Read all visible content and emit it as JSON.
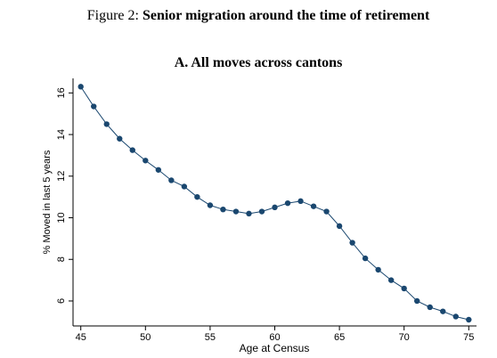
{
  "chart_data": {
    "type": "line",
    "figure_label": "Figure 2:",
    "title": "Senior migration around the time of retirement",
    "subtitle": "A. All moves across cantons",
    "x_label": "Age at Census",
    "y_label": "% Moved in last 5 years",
    "x": [
      45,
      46,
      47,
      48,
      49,
      50,
      51,
      52,
      53,
      54,
      55,
      56,
      57,
      58,
      59,
      60,
      61,
      62,
      63,
      64,
      65,
      66,
      67,
      68,
      69,
      70,
      71,
      72,
      73,
      74,
      75
    ],
    "values": [
      16.3,
      15.35,
      14.5,
      13.8,
      13.25,
      12.75,
      12.3,
      11.8,
      11.5,
      11.0,
      10.6,
      10.4,
      10.3,
      10.2,
      10.3,
      10.5,
      10.7,
      10.8,
      10.55,
      10.3,
      9.6,
      8.8,
      8.05,
      7.5,
      7.0,
      6.6,
      6.0,
      5.7,
      5.5,
      5.25,
      5.1
    ],
    "color": "#1a476f",
    "xlim": [
      44.4,
      75.6
    ],
    "ylim": [
      4.8,
      16.7
    ],
    "xticks": [
      45,
      50,
      55,
      60,
      65,
      70,
      75
    ],
    "yticks": [
      6,
      8,
      10,
      12,
      14,
      16
    ]
  }
}
